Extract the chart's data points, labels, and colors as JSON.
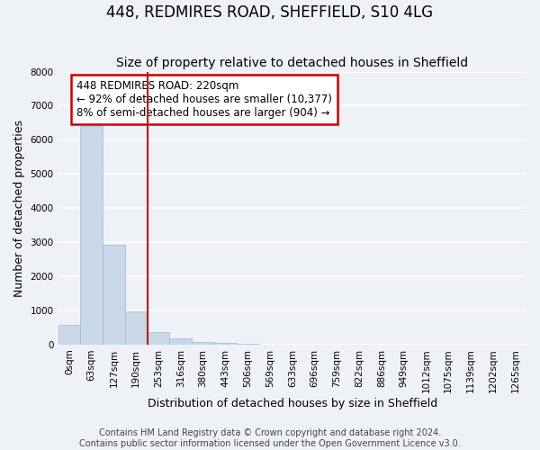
{
  "title": "448, REDMIRES ROAD, SHEFFIELD, S10 4LG",
  "subtitle": "Size of property relative to detached houses in Sheffield",
  "xlabel": "Distribution of detached houses by size in Sheffield",
  "ylabel": "Number of detached properties",
  "bar_values": [
    570,
    6400,
    2920,
    980,
    370,
    170,
    80,
    50,
    20,
    0,
    0,
    0,
    0,
    0,
    0,
    0,
    0,
    0,
    0,
    0,
    0
  ],
  "bar_color": "#c8d8e8",
  "bar_edge_color": "#a0b8cc",
  "x_labels": [
    "0sqm",
    "63sqm",
    "127sqm",
    "190sqm",
    "253sqm",
    "316sqm",
    "380sqm",
    "443sqm",
    "506sqm",
    "569sqm",
    "633sqm",
    "696sqm",
    "759sqm",
    "822sqm",
    "886sqm",
    "949sqm",
    "1012sqm",
    "1075sqm",
    "1139sqm",
    "1202sqm",
    "1265sqm"
  ],
  "ylim": [
    0,
    8000
  ],
  "yticks": [
    0,
    1000,
    2000,
    3000,
    4000,
    5000,
    6000,
    7000,
    8000
  ],
  "red_line_x": 3.5,
  "annotation_title": "448 REDMIRES ROAD: 220sqm",
  "annotation_line1": "← 92% of detached houses are smaller (10,377)",
  "annotation_line2": "8% of semi-detached houses are larger (904) →",
  "annotation_box_color": "#ffffff",
  "annotation_box_edge": "#cc0000",
  "red_line_color": "#cc0000",
  "footer1": "Contains HM Land Registry data © Crown copyright and database right 2024.",
  "footer2": "Contains public sector information licensed under the Open Government Licence v3.0.",
  "bg_color": "#eef2f7",
  "plot_bg_color": "#eef2f7",
  "grid_color": "#ffffff",
  "title_fontsize": 12,
  "subtitle_fontsize": 10,
  "axis_label_fontsize": 9,
  "tick_fontsize": 7.5,
  "footer_fontsize": 7
}
